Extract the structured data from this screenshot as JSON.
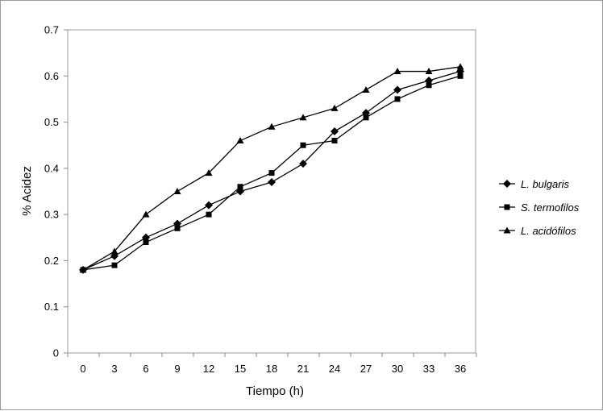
{
  "chart_data": {
    "type": "line",
    "title": "",
    "xlabel": "Tiempo (h)",
    "ylabel": "% Acidez",
    "categories": [
      "0",
      "3",
      "6",
      "9",
      "12",
      "15",
      "18",
      "21",
      "24",
      "27",
      "30",
      "33",
      "36"
    ],
    "ylim": [
      0,
      0.7
    ],
    "yticks": [
      "0",
      "0.1",
      "0.2",
      "0.3",
      "0.4",
      "0.5",
      "0.6",
      "0.7"
    ],
    "grid": false,
    "legend_position": "right",
    "series": [
      {
        "name": "L. bulgaris",
        "marker": "diamond",
        "color": "#000000",
        "values": [
          0.18,
          0.21,
          0.25,
          0.28,
          0.32,
          0.35,
          0.37,
          0.41,
          0.48,
          0.52,
          0.57,
          0.59,
          0.61
        ]
      },
      {
        "name": "S. termofilos",
        "marker": "square",
        "color": "#000000",
        "values": [
          0.18,
          0.19,
          0.24,
          0.27,
          0.3,
          0.36,
          0.39,
          0.45,
          0.46,
          0.51,
          0.55,
          0.58,
          0.6
        ]
      },
      {
        "name": "L. acidófilos",
        "marker": "triangle",
        "color": "#000000",
        "values": [
          0.18,
          0.22,
          0.3,
          0.35,
          0.39,
          0.46,
          0.49,
          0.51,
          0.53,
          0.57,
          0.61,
          0.61,
          0.62
        ]
      }
    ]
  }
}
